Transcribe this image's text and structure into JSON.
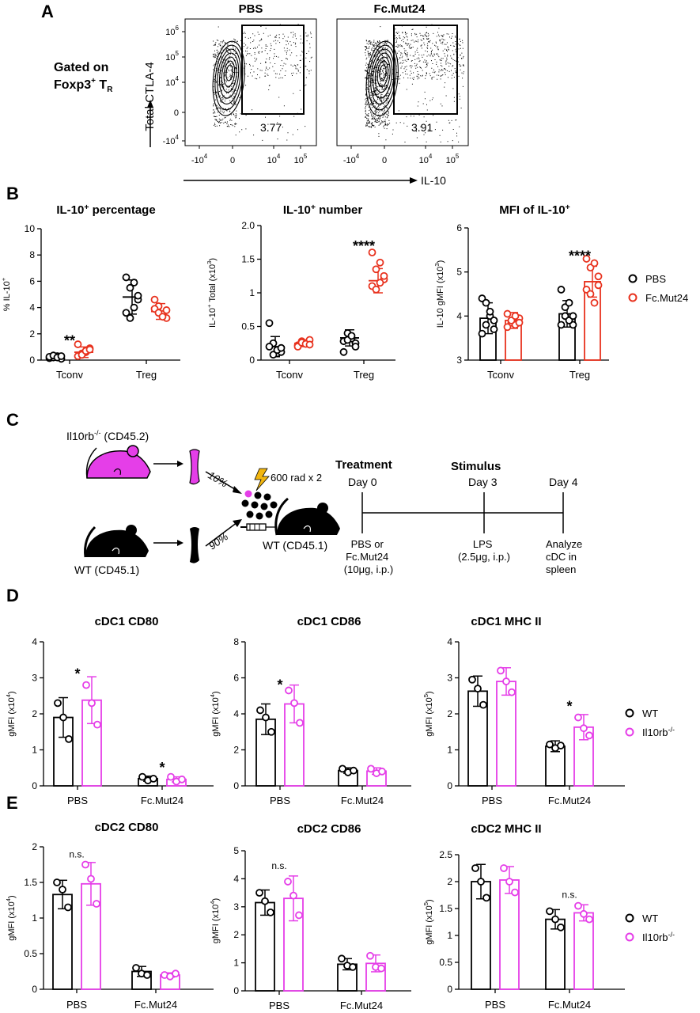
{
  "panel_letters": {
    "a": "A",
    "b": "B",
    "c": "C",
    "d": "D",
    "e": "E"
  },
  "panel_a": {
    "gating_line1": "Gated on",
    "gating_line2": "Foxp3",
    "gating_sup": "+",
    "gating_line2b": " T",
    "gating_sub": "R",
    "y_axis_label": "Total CTLA-4",
    "x_axis_label": "IL-10",
    "plots": [
      {
        "title": "PBS",
        "gate_value": "3.77"
      },
      {
        "title": "Fc.Mut24",
        "gate_value": "3.91"
      }
    ],
    "y_ticks": [
      {
        "base": "10",
        "exp": "6"
      },
      {
        "base": "10",
        "exp": "5"
      },
      {
        "base": "10",
        "exp": "4"
      },
      {
        "base": "0",
        "exp": ""
      },
      {
        "base": "-10",
        "exp": "4"
      }
    ],
    "x_ticks": [
      {
        "base": "-10",
        "exp": "4"
      },
      {
        "base": "0",
        "exp": ""
      },
      {
        "base": "10",
        "exp": "4"
      },
      {
        "base": "10",
        "exp": "5"
      }
    ]
  },
  "legend_b": {
    "items": [
      {
        "name": "PBS",
        "color": "#000000"
      },
      {
        "name": "Fc.Mut24",
        "color": "#e8321e"
      }
    ]
  },
  "legend_de": {
    "items": [
      {
        "name": "WT",
        "color": "#000000"
      },
      {
        "name": "Il10rb",
        "sup": "-/-",
        "color": "#e53ee8"
      }
    ]
  },
  "chart_data": [
    {
      "id": "b1",
      "type": "scatter",
      "title": "IL-10",
      "title_sup": "+",
      "title_tail": " percentage",
      "ylabel": "% IL-10",
      "ylabel_sup": "+",
      "ylim": [
        0,
        10
      ],
      "yticks": [
        "0",
        "2",
        "4",
        "6",
        "8",
        "10"
      ],
      "categories": [
        "Tconv",
        "Treg"
      ],
      "series": [
        {
          "name": "PBS",
          "color": "#000000",
          "means": [
            0.25,
            4.8
          ],
          "sd": [
            0.2,
            1.3
          ],
          "points": [
            [
              0.15,
              0.2,
              0.3,
              0.1,
              0.25,
              0.35,
              0.2,
              0.3
            ],
            [
              6.3,
              5.5,
              5.9,
              4.6,
              3.6,
              3.2,
              4.0,
              4.9
            ]
          ]
        },
        {
          "name": "Fc.Mut24",
          "color": "#e8321e",
          "means": [
            0.6,
            3.7
          ],
          "sd": [
            0.4,
            0.6
          ],
          "points": [
            [
              0.3,
              0.5,
              0.6,
              0.9,
              1.2,
              0.4,
              0.7,
              0.8
            ],
            [
              4.6,
              4.1,
              3.5,
              3.2,
              3.9,
              3.6,
              3.3,
              3.8
            ]
          ]
        }
      ],
      "annotations": [
        {
          "cat": 0,
          "y": 1.6,
          "text": "**"
        }
      ]
    },
    {
      "id": "b2",
      "type": "scatter",
      "title": "IL-10",
      "title_sup": "+",
      "title_tail": " number",
      "ylabel": "IL-10",
      "ylabel_sup": "+",
      "ylabel_tail": " Total (x10",
      "ylabel_sup2": "3",
      "ylabel_end": ")",
      "ylim": [
        0,
        2.0
      ],
      "yticks": [
        "0",
        "0.5",
        "1",
        "1.5",
        "2.0"
      ],
      "categories": [
        "Tconv",
        "Treg"
      ],
      "series": [
        {
          "name": "PBS",
          "color": "#000000",
          "means": [
            0.2,
            0.33
          ],
          "sd": [
            0.15,
            0.12
          ],
          "points": [
            [
              0.55,
              0.25,
              0.1,
              0.12,
              0.2,
              0.08,
              0.15,
              0.18
            ],
            [
              0.28,
              0.4,
              0.32,
              0.25,
              0.12,
              0.3,
              0.36,
              0.2
            ]
          ]
        },
        {
          "name": "Fc.Mut24",
          "color": "#e8321e",
          "means": [
            0.25,
            1.18
          ],
          "sd": [
            0.05,
            0.18
          ],
          "points": [
            [
              0.22,
              0.28,
              0.25,
              0.3,
              0.2,
              0.26,
              0.24,
              0.23
            ],
            [
              1.6,
              1.35,
              1.45,
              1.2,
              1.1,
              1.05,
              1.15,
              1.25
            ]
          ]
        }
      ],
      "annotations": [
        {
          "cat": 1,
          "y": 1.72,
          "text": "****"
        }
      ]
    },
    {
      "id": "b3",
      "type": "bar",
      "title": "MFI of IL-10",
      "title_sup": "+",
      "title_tail": "",
      "ylabel": "IL-10 gMFI (x10",
      "ylabel_sup": "3",
      "ylabel_tail": ")",
      "ylim": [
        3,
        6
      ],
      "yticks": [
        "3",
        "4",
        "5",
        "6"
      ],
      "categories": [
        "Tconv",
        "Treg"
      ],
      "series": [
        {
          "name": "PBS",
          "color": "#000000",
          "means": [
            3.95,
            4.05
          ],
          "sd": [
            0.35,
            0.3
          ],
          "points": [
            [
              4.4,
              4.3,
              4.0,
              3.7,
              3.6,
              3.8,
              4.1,
              3.9
            ],
            [
              4.6,
              4.2,
              4.3,
              3.8,
              3.8,
              4.0,
              3.9,
              4.0
            ]
          ]
        },
        {
          "name": "Fc.Mut24",
          "color": "#e8321e",
          "means": [
            3.9,
            4.78
          ],
          "sd": [
            0.18,
            0.35
          ],
          "points": [
            [
              4.05,
              3.85,
              3.8,
              3.95,
              3.75,
              3.9,
              4.0,
              3.85
            ],
            [
              5.3,
              5.1,
              5.2,
              4.7,
              4.6,
              4.5,
              4.3,
              4.9
            ]
          ]
        }
      ],
      "annotations": [
        {
          "cat": 1,
          "y": 5.4,
          "text": "****"
        }
      ]
    },
    {
      "id": "d1",
      "type": "bar",
      "title": "cDC1 CD80",
      "ylabel": "gMFI (x10",
      "ylabel_sup": "4",
      "ylabel_tail": ")",
      "ylim": [
        0,
        4
      ],
      "yticks": [
        "0",
        "1",
        "2",
        "3",
        "4"
      ],
      "categories": [
        "PBS",
        "Fc.Mut24"
      ],
      "series": [
        {
          "name": "WT",
          "color": "#000000",
          "means": [
            1.9,
            0.2
          ],
          "sd": [
            0.55,
            0.07
          ],
          "points": [
            [
              2.3,
              1.9,
              1.3
            ],
            [
              0.25,
              0.15,
              0.2
            ]
          ]
        },
        {
          "name": "Il10rb-/-",
          "color": "#e53ee8",
          "means": [
            2.38,
            0.18
          ],
          "sd": [
            0.65,
            0.07
          ],
          "points": [
            [
              2.8,
              2.3,
              1.7
            ],
            [
              0.25,
              0.12,
              0.18
            ]
          ]
        }
      ],
      "annotations": [
        {
          "cat": 0,
          "y": 3.15,
          "text": "*"
        },
        {
          "cat": 1,
          "y": 0.55,
          "text": "*"
        }
      ]
    },
    {
      "id": "d2",
      "type": "bar",
      "title": "cDC1 CD86",
      "ylabel": "gMFI (x10",
      "ylabel_sup": "4",
      "ylabel_tail": ")",
      "ylim": [
        0,
        8
      ],
      "yticks": [
        "0",
        "2",
        "4",
        "6",
        "8"
      ],
      "categories": [
        "PBS",
        "Fc.Mut24"
      ],
      "series": [
        {
          "name": "WT",
          "color": "#000000",
          "means": [
            3.7,
            0.85
          ],
          "sd": [
            0.85,
            0.15
          ],
          "points": [
            [
              4.2,
              3.8,
              3.0
            ],
            [
              0.95,
              0.75,
              0.85
            ]
          ]
        },
        {
          "name": "Il10rb-/-",
          "color": "#e53ee8",
          "means": [
            4.55,
            0.82
          ],
          "sd": [
            1.05,
            0.18
          ],
          "points": [
            [
              5.3,
              4.6,
              3.5
            ],
            [
              0.95,
              0.7,
              0.8
            ]
          ]
        }
      ],
      "annotations": [
        {
          "cat": 0,
          "y": 5.7,
          "text": "*"
        }
      ]
    },
    {
      "id": "d3",
      "type": "bar",
      "title": "cDC1 MHC II",
      "ylabel": "gMFI (x10",
      "ylabel_sup": "5",
      "ylabel_tail": ")",
      "ylim": [
        0,
        4
      ],
      "yticks": [
        "0",
        "1",
        "2",
        "3",
        "4"
      ],
      "categories": [
        "PBS",
        "Fc.Mut24"
      ],
      "series": [
        {
          "name": "WT",
          "color": "#000000",
          "means": [
            2.63,
            1.1
          ],
          "sd": [
            0.42,
            0.15
          ],
          "points": [
            [
              2.95,
              2.7,
              2.25
            ],
            [
              1.15,
              1.05,
              1.12
            ]
          ]
        },
        {
          "name": "Il10rb-/-",
          "color": "#e53ee8",
          "means": [
            2.9,
            1.63
          ],
          "sd": [
            0.38,
            0.35
          ],
          "points": [
            [
              3.2,
              2.9,
              2.6
            ],
            [
              1.9,
              1.6,
              1.4
            ]
          ]
        }
      ],
      "annotations": [
        {
          "cat": 1,
          "y": 2.25,
          "text": "*"
        }
      ]
    },
    {
      "id": "e1",
      "type": "bar",
      "title": "cDC2 CD80",
      "ylabel": "gMFI (x10",
      "ylabel_sup": "4",
      "ylabel_tail": ")",
      "ylim": [
        0,
        2
      ],
      "yticks": [
        "0",
        "0.5",
        "1",
        "1.5",
        "2"
      ],
      "categories": [
        "PBS",
        "Fc.Mut24"
      ],
      "series": [
        {
          "name": "WT",
          "color": "#000000",
          "means": [
            1.33,
            0.25
          ],
          "sd": [
            0.2,
            0.07
          ],
          "points": [
            [
              1.5,
              1.4,
              1.15
            ],
            [
              0.3,
              0.22,
              0.2
            ]
          ]
        },
        {
          "name": "Il10rb-/-",
          "color": "#e53ee8",
          "means": [
            1.48,
            0.2
          ],
          "sd": [
            0.3,
            0.03
          ],
          "points": [
            [
              1.75,
              1.55,
              1.2
            ],
            [
              0.2,
              0.18,
              0.22
            ]
          ]
        }
      ],
      "annotations": [
        {
          "cat": 0,
          "y": 1.85,
          "text": "n.s."
        }
      ]
    },
    {
      "id": "e2",
      "type": "bar",
      "title": "cDC2 CD86",
      "ylabel": "gMFI (x10",
      "ylabel_sup": "4",
      "ylabel_tail": ")",
      "ylim": [
        0,
        5
      ],
      "yticks": [
        "0",
        "1",
        "2",
        "3",
        "4",
        "5"
      ],
      "categories": [
        "PBS",
        "Fc.Mut24"
      ],
      "series": [
        {
          "name": "WT",
          "color": "#000000",
          "means": [
            3.15,
            0.95
          ],
          "sd": [
            0.45,
            0.2
          ],
          "points": [
            [
              3.5,
              3.2,
              2.8
            ],
            [
              1.15,
              0.9,
              0.85
            ]
          ]
        },
        {
          "name": "Il10rb-/-",
          "color": "#e53ee8",
          "means": [
            3.3,
            0.98
          ],
          "sd": [
            0.8,
            0.3
          ],
          "points": [
            [
              3.9,
              3.4,
              2.7
            ],
            [
              1.25,
              0.85,
              0.8
            ]
          ]
        }
      ],
      "annotations": [
        {
          "cat": 0,
          "y": 4.35,
          "text": "n.s."
        }
      ]
    },
    {
      "id": "e3",
      "type": "bar",
      "title": "cDC2 MHC II",
      "ylabel": "gMFI (x10",
      "ylabel_sup": "5",
      "ylabel_tail": ")",
      "ylim": [
        0,
        2.5
      ],
      "yticks": [
        "0",
        "0.5",
        "1",
        "1.5",
        "2",
        "2.5"
      ],
      "categories": [
        "PBS",
        "Fc.Mut24"
      ],
      "series": [
        {
          "name": "WT",
          "color": "#000000",
          "means": [
            2.0,
            1.3
          ],
          "sd": [
            0.32,
            0.18
          ],
          "points": [
            [
              2.25,
              2.0,
              1.7
            ],
            [
              1.45,
              1.3,
              1.15
            ]
          ]
        },
        {
          "name": "Il10rb-/-",
          "color": "#e53ee8",
          "means": [
            2.03,
            1.42
          ],
          "sd": [
            0.25,
            0.15
          ],
          "points": [
            [
              2.25,
              2.0,
              1.8
            ],
            [
              1.55,
              1.4,
              1.3
            ]
          ]
        }
      ],
      "annotations": [
        {
          "cat": 1,
          "y": 1.7,
          "text": "n.s."
        }
      ]
    }
  ],
  "panel_c": {
    "donor_ko": "Il10rb",
    "donor_ko_sup": "-/-",
    "donor_ko_tail": " (CD45.2)",
    "donor_wt": "WT (CD45.1)",
    "pct_ko": "10%",
    "pct_wt": "90%",
    "irradiation": "600 rad x 2",
    "recipient": "WT (CD45.1)",
    "colors": {
      "ko": "#e53ee8",
      "wt": "#000000",
      "bolt": "#f2b60f"
    },
    "timeline": {
      "headers": [
        "Treatment",
        "Stimulus"
      ],
      "days": [
        "Day 0",
        "Day 3",
        "Day 4"
      ],
      "notes": [
        [
          "PBS or",
          "Fc.Mut24",
          "(10μg, i.p.)"
        ],
        [
          "LPS",
          "(2.5μg, i.p.)"
        ],
        [
          "Analyze",
          "cDC in",
          "spleen"
        ]
      ]
    }
  }
}
